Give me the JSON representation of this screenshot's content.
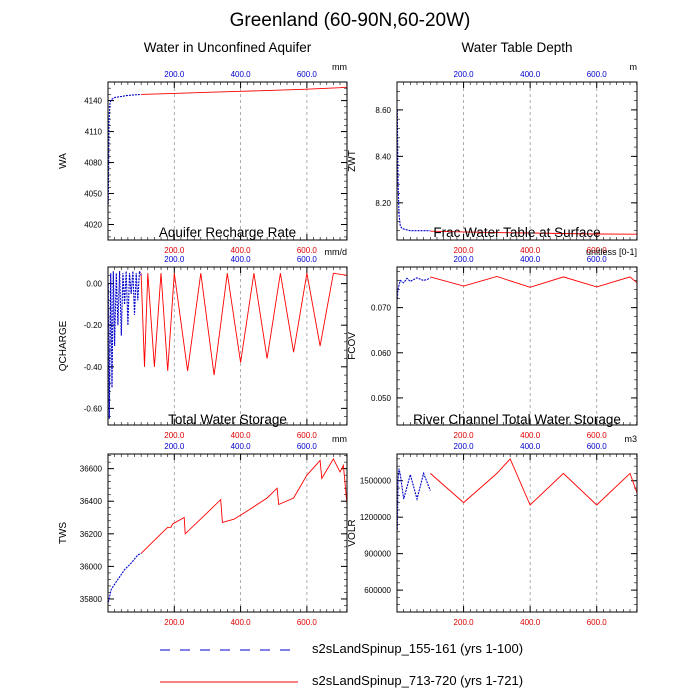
{
  "page": {
    "title": "Greenland (60-90N,60-20W)"
  },
  "colors": {
    "series_a": "#0000cc",
    "series_b": "#ff0000",
    "grid": "#999999",
    "top_ticks": "#0000cc",
    "bottom_ticks": "#dd0000"
  },
  "legend": {
    "items": [
      {
        "label": "s2sLandSpinup_155-161 (yrs 1-100)",
        "style": "dashed",
        "color": "#0000cc"
      },
      {
        "label": "s2sLandSpinup_713-720 (yrs 1-721)",
        "style": "solid",
        "color": "#ff0000"
      }
    ]
  },
  "chart_data": [
    {
      "type": "line",
      "id": "wa",
      "title": "Water in Unconfined Aquifer",
      "ylabel": "WA",
      "units": "mm",
      "xlim": [
        0,
        721
      ],
      "x_ticks": [
        200,
        400,
        600
      ],
      "x_tick_labels": [
        "200.0",
        "400.0",
        "600.0"
      ],
      "ylim": [
        4005,
        4158
      ],
      "y_ticks": [
        4020,
        4050,
        4080,
        4110,
        4140
      ],
      "y_tick_labels": [
        "4020",
        "4050",
        "4080",
        "4110",
        "4140"
      ],
      "series": [
        {
          "name": "s2sLandSpinup_155-161 (yrs 1-100)",
          "x": [
            1,
            3,
            6,
            10,
            20,
            40,
            60,
            80,
            100
          ],
          "y": [
            4040,
            4120,
            4138,
            4141,
            4143,
            4144,
            4145,
            4145.5,
            4146
          ]
        },
        {
          "name": "s2sLandSpinup_713-720 (yrs 1-721)",
          "x": [
            100,
            200,
            300,
            400,
            500,
            600,
            700,
            721
          ],
          "y": [
            4146,
            4147,
            4148,
            4149,
            4150,
            4151,
            4152.5,
            4153
          ]
        }
      ]
    },
    {
      "type": "line",
      "id": "zwt",
      "title": "Water Table Depth",
      "ylabel": "ZWT",
      "units": "m",
      "xlim": [
        0,
        721
      ],
      "x_ticks": [
        200,
        400,
        600
      ],
      "x_tick_labels": [
        "200.0",
        "400.0",
        "600.0"
      ],
      "ylim": [
        8.04,
        8.72
      ],
      "y_ticks": [
        8.2,
        8.4,
        8.6
      ],
      "y_tick_labels": [
        "8.20",
        "8.40",
        "8.60"
      ],
      "series": [
        {
          "name": "s2sLandSpinup_155-161 (yrs 1-100)",
          "x": [
            1,
            3,
            6,
            10,
            15,
            25,
            40,
            60,
            80,
            100
          ],
          "y": [
            8.6,
            8.3,
            8.15,
            8.1,
            8.09,
            8.085,
            8.08,
            8.08,
            8.08,
            8.08
          ]
        },
        {
          "name": "s2sLandSpinup_713-720 (yrs 1-721)",
          "x": [
            100,
            200,
            300,
            400,
            500,
            600,
            721
          ],
          "y": [
            8.078,
            8.075,
            8.072,
            8.07,
            8.068,
            8.066,
            8.065
          ]
        }
      ]
    },
    {
      "type": "line",
      "id": "qcharge",
      "title": "Aquifer Recharge Rate",
      "ylabel": "QCHARGE",
      "units": "mm/d",
      "xlim": [
        0,
        721
      ],
      "x_ticks": [
        200,
        400,
        600
      ],
      "x_tick_labels": [
        "200.0",
        "400.0",
        "600.0"
      ],
      "ylim": [
        -0.68,
        0.08
      ],
      "y_ticks": [
        -0.6,
        -0.4,
        -0.2,
        0.0
      ],
      "y_tick_labels": [
        "-0.60",
        "-0.40",
        "-0.20",
        "0.00"
      ],
      "series": [
        {
          "name": "s2sLandSpinup_155-161 (yrs 1-100)",
          "x": [
            1,
            4,
            8,
            12,
            16,
            20,
            25,
            30,
            35,
            40,
            45,
            50,
            55,
            60,
            65,
            70,
            75,
            80,
            85,
            90,
            95,
            100
          ],
          "y": [
            0.0,
            -0.65,
            0.05,
            -0.5,
            0.06,
            -0.3,
            0.05,
            -0.2,
            0.06,
            -0.25,
            0.05,
            -0.1,
            0.06,
            -0.2,
            0.05,
            -0.05,
            0.06,
            -0.15,
            0.05,
            -0.08,
            0.06,
            0.04
          ]
        },
        {
          "name": "s2sLandSpinup_713-720 (yrs 1-721)",
          "x": [
            100,
            110,
            120,
            140,
            160,
            180,
            200,
            240,
            280,
            320,
            360,
            400,
            440,
            480,
            520,
            560,
            600,
            640,
            680,
            721
          ],
          "y": [
            0.05,
            -0.4,
            0.05,
            -0.4,
            0.05,
            -0.42,
            0.05,
            -0.42,
            0.05,
            -0.44,
            0.05,
            -0.38,
            0.05,
            -0.36,
            0.05,
            -0.33,
            0.05,
            -0.3,
            0.05,
            0.04
          ]
        }
      ]
    },
    {
      "type": "line",
      "id": "fcov",
      "title": "Frac Water Table at Surface",
      "ylabel": "FCOV",
      "units": "unitless [0-1]",
      "xlim": [
        0,
        721
      ],
      "x_ticks": [
        200,
        400,
        600
      ],
      "x_tick_labels": [
        "200.0",
        "400.0",
        "600.0"
      ],
      "ylim": [
        0.044,
        0.079
      ],
      "y_ticks": [
        0.05,
        0.06,
        0.07
      ],
      "y_tick_labels": [
        "0.050",
        "0.060",
        "0.070"
      ],
      "series": [
        {
          "name": "s2sLandSpinup_155-161 (yrs 1-100)",
          "x": [
            1,
            3,
            6,
            10,
            20,
            30,
            40,
            60,
            80,
            100
          ],
          "y": [
            0.072,
            0.074,
            0.075,
            0.076,
            0.0755,
            0.0765,
            0.0758,
            0.0766,
            0.076,
            0.0765
          ]
        },
        {
          "name": "s2sLandSpinup_713-720 (yrs 1-721)",
          "x": [
            100,
            200,
            300,
            400,
            500,
            600,
            700,
            721
          ],
          "y": [
            0.0768,
            0.0748,
            0.0769,
            0.0745,
            0.0768,
            0.0746,
            0.0768,
            0.0755
          ]
        }
      ]
    },
    {
      "type": "line",
      "id": "tws",
      "title": "Total Water Storage",
      "ylabel": "TWS",
      "units": "mm",
      "xlim": [
        0,
        721
      ],
      "x_ticks": [
        200,
        400,
        600
      ],
      "x_tick_labels": [
        "200.0",
        "400.0",
        "600.0"
      ],
      "ylim": [
        35720,
        36690
      ],
      "y_ticks": [
        35800,
        36000,
        36200,
        36400,
        36600
      ],
      "y_tick_labels": [
        "35800",
        "36000",
        "36200",
        "36400",
        "36600"
      ],
      "series": [
        {
          "name": "s2sLandSpinup_155-161 (yrs 1-100)",
          "x": [
            1,
            10,
            30,
            50,
            70,
            90,
            100
          ],
          "y": [
            35780,
            35860,
            35920,
            35980,
            36020,
            36070,
            36080
          ]
        },
        {
          "name": "s2sLandSpinup_713-720 (yrs 1-721)",
          "x": [
            100,
            140,
            180,
            190,
            195,
            230,
            233,
            300,
            340,
            345,
            380,
            420,
            480,
            510,
            515,
            560,
            600,
            640,
            645,
            680,
            700,
            710,
            721
          ],
          "y": [
            36080,
            36160,
            36240,
            36240,
            36260,
            36300,
            36200,
            36330,
            36410,
            36270,
            36290,
            36340,
            36420,
            36480,
            36380,
            36420,
            36560,
            36650,
            36540,
            36660,
            36580,
            36620,
            36380
          ]
        }
      ]
    },
    {
      "type": "line",
      "id": "volr",
      "title": "River Channel Total Water Storage",
      "ylabel": "VOLR",
      "units": "m3",
      "xlim": [
        0,
        721
      ],
      "x_ticks": [
        200,
        400,
        600
      ],
      "x_tick_labels": [
        "200.0",
        "400.0",
        "600.0"
      ],
      "ylim": [
        420000,
        1720000
      ],
      "y_ticks": [
        600000,
        900000,
        1200000,
        1500000
      ],
      "y_tick_labels": [
        "600000",
        "900000",
        "1200000",
        "1500000"
      ],
      "series": [
        {
          "name": "s2sLandSpinup_155-161 (yrs 1-100)",
          "x": [
            1,
            3,
            6,
            10,
            20,
            40,
            60,
            80,
            100
          ],
          "y": [
            1100000,
            1500000,
            1600000,
            1550000,
            1350000,
            1550000,
            1350000,
            1560000,
            1420000
          ]
        },
        {
          "name": "s2sLandSpinup_713-720 (yrs 1-721)",
          "x": [
            100,
            200,
            300,
            340,
            400,
            500,
            600,
            700,
            721
          ],
          "y": [
            1560000,
            1320000,
            1560000,
            1680000,
            1300000,
            1560000,
            1300000,
            1560000,
            1400000
          ]
        }
      ]
    }
  ]
}
